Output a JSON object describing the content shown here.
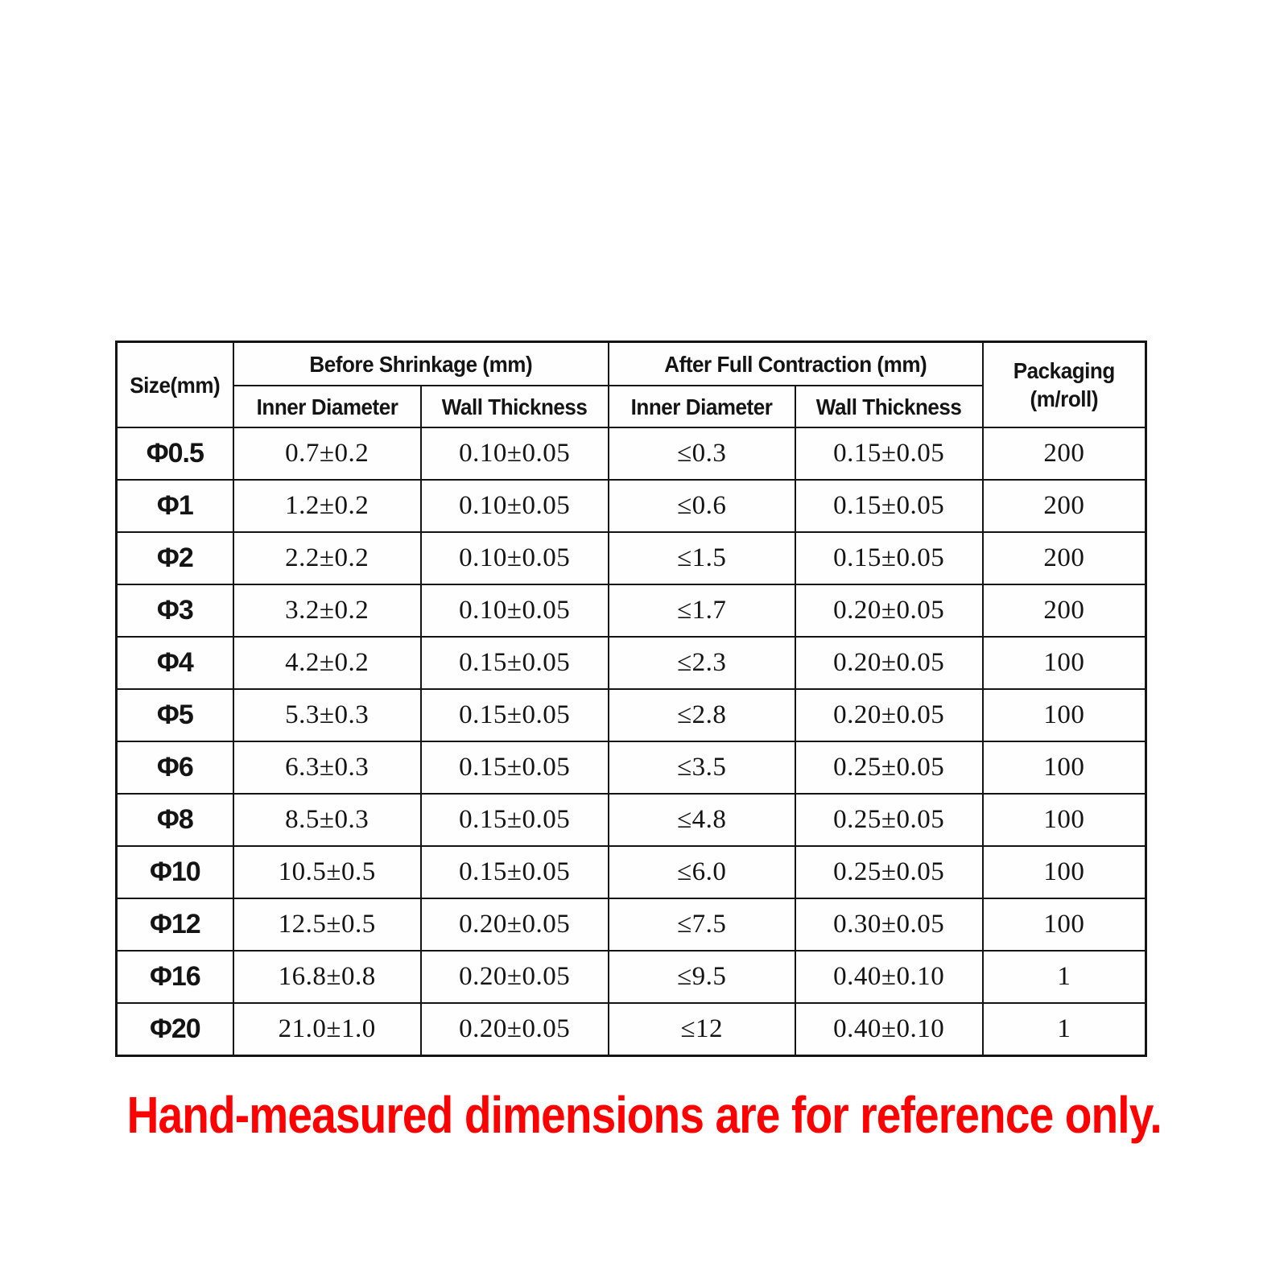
{
  "table": {
    "headers": {
      "size": "Size(mm)",
      "before_group": "Before Shrinkage (mm)",
      "after_group": "After Full Contraction (mm)",
      "packaging_line1": "Packaging",
      "packaging_line2": "(m/roll)",
      "sub": [
        "Inner Diameter",
        "Wall Thickness",
        "Inner Diameter",
        "Wall Thickness"
      ]
    },
    "rows": [
      [
        "Φ0.5",
        "0.7±0.2",
        "0.10±0.05",
        "≤0.3",
        "0.15±0.05",
        "200"
      ],
      [
        "Φ1",
        "1.2±0.2",
        "0.10±0.05",
        "≤0.6",
        "0.15±0.05",
        "200"
      ],
      [
        "Φ2",
        "2.2±0.2",
        "0.10±0.05",
        "≤1.5",
        "0.15±0.05",
        "200"
      ],
      [
        "Φ3",
        "3.2±0.2",
        "0.10±0.05",
        "≤1.7",
        "0.20±0.05",
        "200"
      ],
      [
        "Φ4",
        "4.2±0.2",
        "0.15±0.05",
        "≤2.3",
        "0.20±0.05",
        "100"
      ],
      [
        "Φ5",
        "5.3±0.3",
        "0.15±0.05",
        "≤2.8",
        "0.20±0.05",
        "100"
      ],
      [
        "Φ6",
        "6.3±0.3",
        "0.15±0.05",
        "≤3.5",
        "0.25±0.05",
        "100"
      ],
      [
        "Φ8",
        "8.5±0.3",
        "0.15±0.05",
        "≤4.8",
        "0.25±0.05",
        "100"
      ],
      [
        "Φ10",
        "10.5±0.5",
        "0.15±0.05",
        "≤6.0",
        "0.25±0.05",
        "100"
      ],
      [
        "Φ12",
        "12.5±0.5",
        "0.20±0.05",
        "≤7.5",
        "0.30±0.05",
        "100"
      ],
      [
        "Φ16",
        "16.8±0.8",
        "0.20±0.05",
        "≤9.5",
        "0.40±0.10",
        "1"
      ],
      [
        "Φ20",
        "21.0±1.0",
        "0.20±0.05",
        "≤12",
        "0.40±0.10",
        "1"
      ]
    ]
  },
  "note": {
    "text": "Hand-measured dimensions are for reference only.",
    "color": "#fe0000"
  },
  "colors": {
    "border": "#141414",
    "text": "#141414",
    "background": "#ffffff"
  }
}
